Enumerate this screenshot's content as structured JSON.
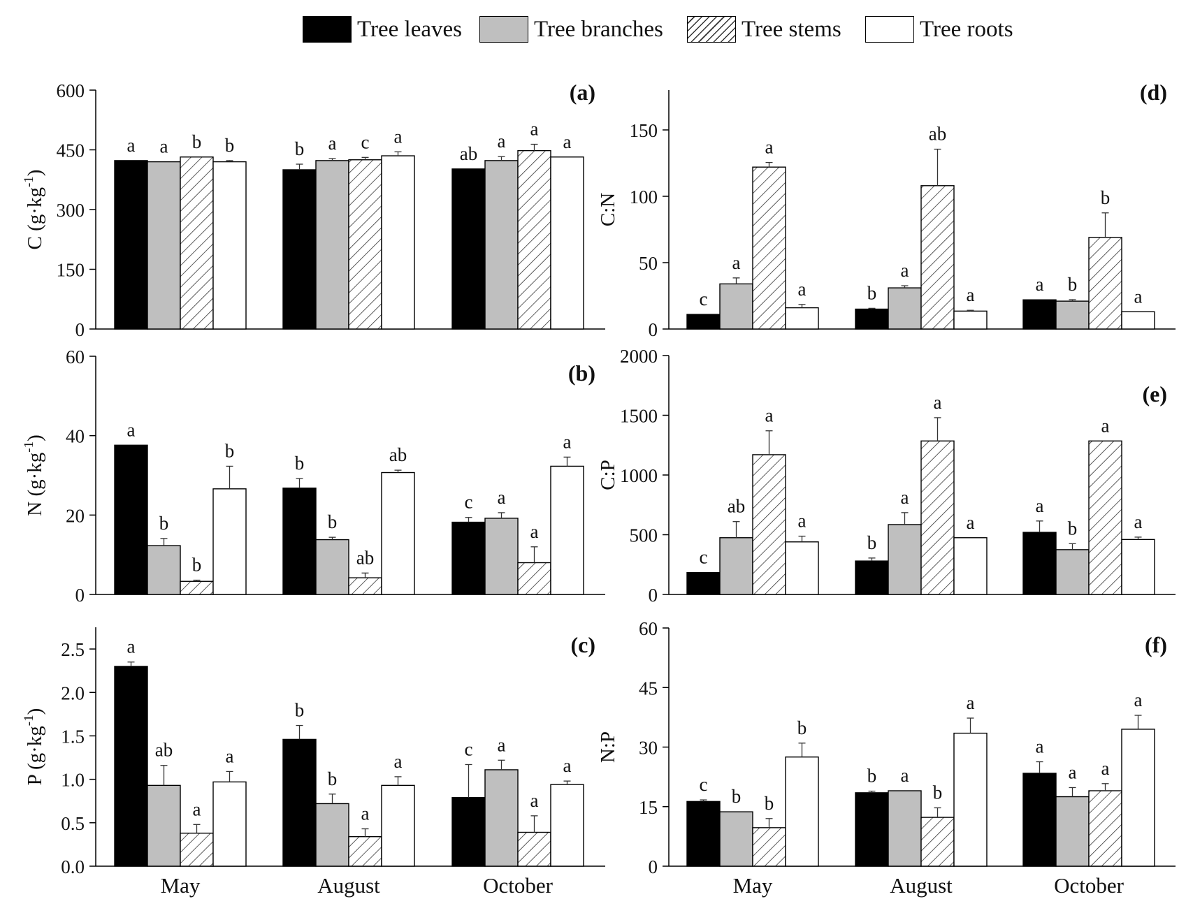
{
  "colors": {
    "leaves": "#000000",
    "branches": "#bfbfbf",
    "stems": "#ffffff",
    "roots": "#ffffff",
    "axis": "#000000"
  },
  "legend": [
    {
      "key": "leaves",
      "label": "Tree leaves"
    },
    {
      "key": "branches",
      "label": "Tree branches"
    },
    {
      "key": "stems",
      "label": "Tree stems"
    },
    {
      "key": "roots",
      "label": "Tree roots"
    }
  ],
  "chart_data": [
    {
      "id": "a",
      "panel_label": "(a)",
      "type": "bar",
      "categories": [
        "May",
        "August",
        "October"
      ],
      "ylabel": "C  (g·kg",
      "ylabel_sup": "-1",
      "ylabel_close": ")",
      "ylim": [
        0,
        600
      ],
      "yticks": [
        0,
        150,
        300,
        450,
        600
      ],
      "series": [
        {
          "name": "Tree leaves",
          "values": [
            423,
            400,
            402
          ],
          "errors": [
            0,
            14,
            0
          ],
          "letters": [
            "a",
            "b",
            "ab"
          ]
        },
        {
          "name": "Tree branches",
          "values": [
            420,
            423,
            423
          ],
          "errors": [
            0,
            5,
            10
          ],
          "letters": [
            "a",
            "a",
            "a"
          ]
        },
        {
          "name": "Tree stems",
          "values": [
            432,
            425,
            448
          ],
          "errors": [
            0,
            6,
            16
          ],
          "letters": [
            "b",
            "c",
            "a"
          ]
        },
        {
          "name": "Tree roots",
          "values": [
            420,
            435,
            432
          ],
          "errors": [
            3,
            10,
            0
          ],
          "letters": [
            "b",
            "a",
            "a"
          ]
        }
      ]
    },
    {
      "id": "b",
      "panel_label": "(b)",
      "type": "bar",
      "categories": [
        "May",
        "August",
        "October"
      ],
      "ylabel": "N  (g·kg",
      "ylabel_sup": "-1",
      "ylabel_close": ")",
      "ylim": [
        0,
        60
      ],
      "yticks": [
        0,
        20,
        40,
        60
      ],
      "series": [
        {
          "name": "Tree leaves",
          "values": [
            37.6,
            26.8,
            18.2
          ],
          "errors": [
            0,
            2.4,
            1.2
          ],
          "letters": [
            "a",
            "b",
            "c"
          ]
        },
        {
          "name": "Tree branches",
          "values": [
            12.3,
            13.8,
            19.2
          ],
          "errors": [
            1.8,
            0.6,
            1.4
          ],
          "letters": [
            "b",
            "b",
            "a"
          ]
        },
        {
          "name": "Tree stems",
          "values": [
            3.3,
            4.2,
            8.0
          ],
          "errors": [
            0.3,
            1.2,
            4.0
          ],
          "letters": [
            "b",
            "ab",
            "a"
          ]
        },
        {
          "name": "Tree roots",
          "values": [
            26.6,
            30.7,
            32.3
          ],
          "errors": [
            5.7,
            0.6,
            2.3
          ],
          "letters": [
            "b",
            "ab",
            "a"
          ]
        }
      ]
    },
    {
      "id": "c",
      "panel_label": "(c)",
      "type": "bar",
      "categories": [
        "May",
        "August",
        "October"
      ],
      "ylabel": "P  (g·kg",
      "ylabel_sup": "-1",
      "ylabel_close": ")",
      "ylim": [
        0,
        2.75
      ],
      "yticks": [
        0,
        0.5,
        1.0,
        1.5,
        2.0,
        2.5
      ],
      "series": [
        {
          "name": "Tree leaves",
          "values": [
            2.3,
            1.46,
            0.79
          ],
          "errors": [
            0.05,
            0.16,
            0.38
          ],
          "letters": [
            "a",
            "b",
            "c"
          ]
        },
        {
          "name": "Tree branches",
          "values": [
            0.93,
            0.72,
            1.11
          ],
          "errors": [
            0.23,
            0.11,
            0.11
          ],
          "letters": [
            "ab",
            "b",
            "a"
          ]
        },
        {
          "name": "Tree stems",
          "values": [
            0.38,
            0.34,
            0.39
          ],
          "errors": [
            0.1,
            0.09,
            0.19
          ],
          "letters": [
            "a",
            "a",
            "a"
          ]
        },
        {
          "name": "Tree roots",
          "values": [
            0.97,
            0.93,
            0.94
          ],
          "errors": [
            0.12,
            0.1,
            0.04
          ],
          "letters": [
            "a",
            "a",
            "a"
          ]
        }
      ]
    },
    {
      "id": "d",
      "panel_label": "(d)",
      "type": "bar",
      "categories": [
        "May",
        "August",
        "October"
      ],
      "ylabel": "C:N",
      "ylabel_sup": "",
      "ylabel_close": "",
      "ylim": [
        0,
        180
      ],
      "yticks": [
        0,
        50,
        100,
        150
      ],
      "series": [
        {
          "name": "Tree leaves",
          "values": [
            11,
            15,
            22
          ],
          "errors": [
            0,
            0.6,
            0
          ],
          "letters": [
            "c",
            "b",
            "a"
          ]
        },
        {
          "name": "Tree branches",
          "values": [
            34,
            31,
            21
          ],
          "errors": [
            4.5,
            1.6,
            1.1
          ],
          "letters": [
            "a",
            "a",
            "b"
          ]
        },
        {
          "name": "Tree stems",
          "values": [
            122,
            108,
            69
          ],
          "errors": [
            3.5,
            27.5,
            18.5
          ],
          "letters": [
            "a",
            "ab",
            "b"
          ]
        },
        {
          "name": "Tree roots",
          "values": [
            16,
            13.5,
            13
          ],
          "errors": [
            2.5,
            0.6,
            0
          ],
          "letters": [
            "a",
            "a",
            "a"
          ]
        }
      ]
    },
    {
      "id": "e",
      "panel_label": "(e)",
      "type": "bar",
      "categories": [
        "May",
        "August",
        "October"
      ],
      "ylabel": "C:P",
      "ylabel_sup": "",
      "ylabel_close": "",
      "ylim": [
        0,
        2000
      ],
      "yticks": [
        0,
        500,
        1000,
        1500,
        2000
      ],
      "series": [
        {
          "name": "Tree leaves",
          "values": [
            183,
            280,
            520
          ],
          "errors": [
            0,
            25,
            95
          ],
          "letters": [
            "c",
            "b",
            "a"
          ]
        },
        {
          "name": "Tree branches",
          "values": [
            475,
            585,
            375
          ],
          "errors": [
            135,
            100,
            50
          ],
          "letters": [
            "ab",
            "a",
            "b"
          ]
        },
        {
          "name": "Tree stems",
          "values": [
            1170,
            1285,
            1285
          ],
          "errors": [
            200,
            195,
            0
          ],
          "letters": [
            "a",
            "a",
            "a"
          ]
        },
        {
          "name": "Tree roots",
          "values": [
            440,
            475,
            460
          ],
          "errors": [
            48,
            0,
            20
          ],
          "letters": [
            "a",
            "a",
            "a"
          ]
        }
      ]
    },
    {
      "id": "f",
      "panel_label": "(f)",
      "type": "bar",
      "categories": [
        "May",
        "August",
        "October"
      ],
      "ylabel": "N:P",
      "ylabel_sup": "",
      "ylabel_close": "",
      "ylim": [
        0,
        60
      ],
      "yticks": [
        0,
        15,
        30,
        45,
        60
      ],
      "series": [
        {
          "name": "Tree leaves",
          "values": [
            16.3,
            18.5,
            23.4
          ],
          "errors": [
            0.4,
            0.4,
            2.9
          ],
          "letters": [
            "c",
            "b",
            "a"
          ]
        },
        {
          "name": "Tree branches",
          "values": [
            13.7,
            19.0,
            17.5
          ],
          "errors": [
            0,
            0,
            2.3
          ],
          "letters": [
            "b",
            "a",
            "a"
          ]
        },
        {
          "name": "Tree stems",
          "values": [
            9.7,
            12.3,
            19.0
          ],
          "errors": [
            2.3,
            2.4,
            1.8
          ],
          "letters": [
            "b",
            "b",
            "a"
          ]
        },
        {
          "name": "Tree roots",
          "values": [
            27.5,
            33.5,
            34.5
          ],
          "errors": [
            3.5,
            3.8,
            3.5
          ],
          "letters": [
            "b",
            "a",
            "a"
          ]
        }
      ]
    }
  ]
}
